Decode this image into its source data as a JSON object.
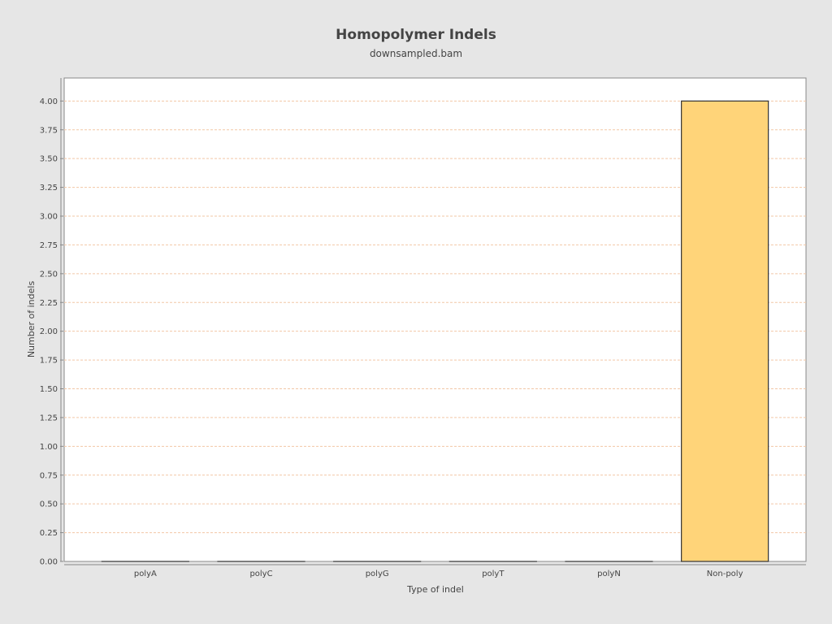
{
  "chart_data": {
    "type": "bar",
    "title": "Homopolymer Indels",
    "subtitle": "downsampled.bam",
    "xlabel": "Type of indel",
    "ylabel": "Number of indels",
    "categories": [
      "polyA",
      "polyC",
      "polyG",
      "polyT",
      "polyN",
      "Non-poly"
    ],
    "values": [
      0,
      0,
      0,
      0,
      0,
      4
    ],
    "ylim": [
      0,
      4.2
    ],
    "yticks": [
      "0.00",
      "0.25",
      "0.50",
      "0.75",
      "1.00",
      "1.25",
      "1.50",
      "1.75",
      "2.00",
      "2.25",
      "2.50",
      "2.75",
      "3.00",
      "3.25",
      "3.50",
      "3.75",
      "4.00"
    ],
    "grid": true,
    "legend": "none",
    "colors": {
      "bar_fill": "#ffd479",
      "bar_stroke": "#333333",
      "grid": "#f2c7a6",
      "plot_background": "#ffffff",
      "page_background": "#e6e6e6"
    }
  }
}
